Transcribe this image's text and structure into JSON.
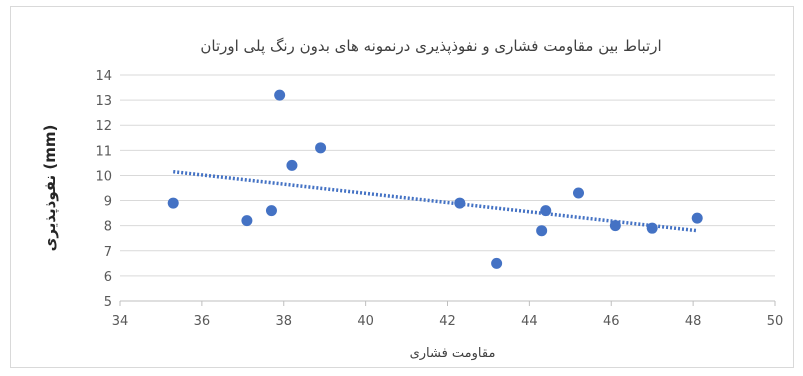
{
  "chart_data": {
    "type": "scatter",
    "title": "ارتباط بین مقاومت فشاری و نفوذپذیری درنمونه های بدون رنگ پلی اورتان",
    "xlabel": "مقاومت فشاری",
    "ylabel": "نفوذپذیری (mm)",
    "xlim": [
      34,
      50
    ],
    "ylim": [
      5,
      14
    ],
    "xticks": [
      "34",
      "36",
      "38",
      "40",
      "42",
      "44",
      "46",
      "48",
      "50"
    ],
    "yticks": [
      "5",
      "6",
      "7",
      "8",
      "9",
      "10",
      "11",
      "12",
      "13",
      "14"
    ],
    "grid": true,
    "marker_color": "#4472c4",
    "trendline": {
      "type": "linear",
      "style": "dotted",
      "x": [
        35.3,
        48.1
      ],
      "y": [
        10.15,
        7.8
      ]
    },
    "points": [
      {
        "x": 35.3,
        "y": 8.9
      },
      {
        "x": 37.1,
        "y": 8.2
      },
      {
        "x": 37.7,
        "y": 8.6
      },
      {
        "x": 37.9,
        "y": 13.2
      },
      {
        "x": 38.2,
        "y": 10.4
      },
      {
        "x": 38.9,
        "y": 11.1
      },
      {
        "x": 42.3,
        "y": 8.9
      },
      {
        "x": 43.2,
        "y": 6.5
      },
      {
        "x": 44.3,
        "y": 7.8
      },
      {
        "x": 44.4,
        "y": 8.6
      },
      {
        "x": 45.2,
        "y": 9.3
      },
      {
        "x": 46.1,
        "y": 8.0
      },
      {
        "x": 47.0,
        "y": 7.9
      },
      {
        "x": 48.1,
        "y": 8.3
      }
    ]
  }
}
